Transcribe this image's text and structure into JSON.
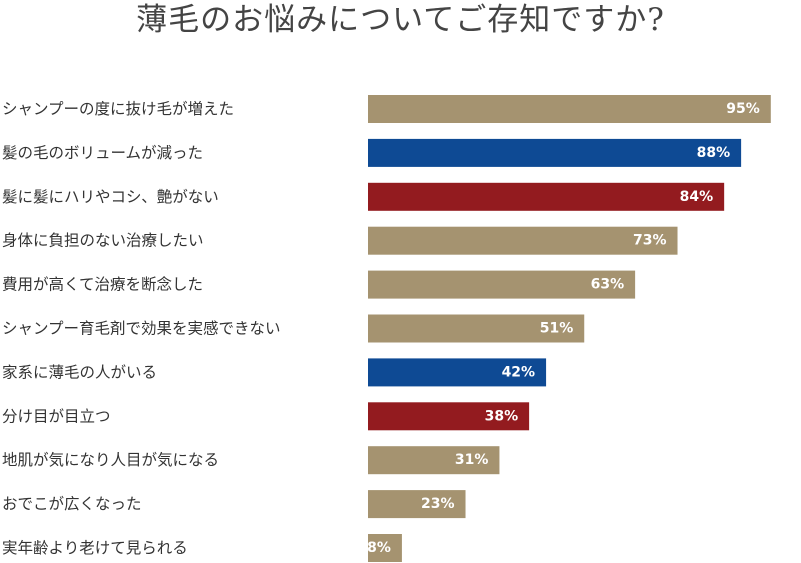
{
  "title": "薄毛のお悩みについてご存知ですか?",
  "colors": {
    "default": "#A59370",
    "blue": "#0E4A94",
    "red": "#931B1F"
  },
  "chart_data": {
    "type": "bar",
    "orientation": "horizontal",
    "title": "薄毛のお悩みについてご存知ですか?",
    "unit": "%",
    "categories": [
      "シャンプーの度に抜け毛が増えた",
      "髪の毛のボリュームが減った",
      "髪に髪にハリやコシ、艶がない",
      "身体に負担のない治療したい",
      "費用が高くて治療を断念した",
      "シャンプー育毛剤で効果を実感できない",
      "家系に薄毛の人がいる",
      "分け目が目立つ",
      "地肌が気になり人目が気になる",
      "おでこが広くなった",
      "実年齢より老けて見られる"
    ],
    "values": [
      95,
      88,
      84,
      73,
      63,
      51,
      42,
      38,
      31,
      23,
      8
    ],
    "value_labels": [
      "95%",
      "88%",
      "84%",
      "73%",
      "63%",
      "51%",
      "42%",
      "38%",
      "31%",
      "23%",
      "8%"
    ],
    "bar_colors": [
      "default",
      "blue",
      "red",
      "default",
      "default",
      "default",
      "blue",
      "red",
      "default",
      "default",
      "default"
    ],
    "xlim": [
      0,
      100
    ],
    "grid": false,
    "legend": "none"
  }
}
